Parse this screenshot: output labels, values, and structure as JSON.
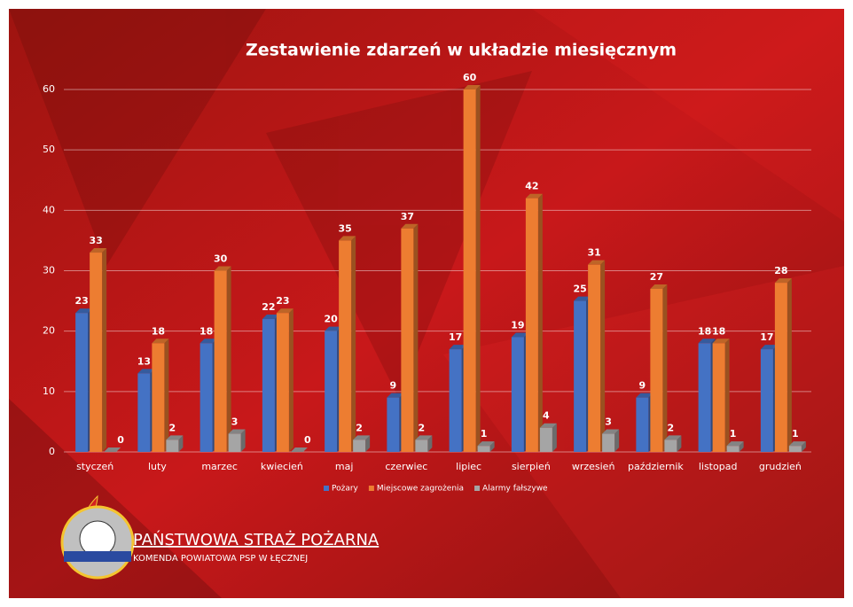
{
  "chart_data": {
    "type": "bar",
    "title": "Zestawienie zdarzeń w układzie miesięcznym",
    "categories": [
      "styczeń",
      "luty",
      "marzec",
      "kwiecień",
      "maj",
      "czerwiec",
      "lipiec",
      "sierpień",
      "wrzesień",
      "październik",
      "listopad",
      "grudzień"
    ],
    "series": [
      {
        "name": "Pożary",
        "color": "#4472c4",
        "values": [
          23,
          13,
          18,
          22,
          20,
          9,
          17,
          19,
          25,
          9,
          18,
          17
        ]
      },
      {
        "name": "Miejscowe zagrożenia",
        "color": "#ed7d31",
        "values": [
          33,
          18,
          30,
          23,
          35,
          37,
          60,
          42,
          31,
          27,
          18,
          28
        ]
      },
      {
        "name": "Alarmy fałszywe",
        "color": "#a5a5a5",
        "values": [
          0,
          2,
          3,
          0,
          2,
          2,
          1,
          4,
          3,
          2,
          1,
          1
        ]
      }
    ],
    "ylim": [
      0,
      60
    ],
    "yticks": [
      0,
      10,
      20,
      30,
      40,
      50,
      60
    ],
    "grid": true,
    "legend": "bottom"
  },
  "footer": {
    "title": "PAŃSTWOWA STRAŻ POŻARNA",
    "subtitle": "KOMENDA POWIATOWA PSP W ŁĘCZNEJ"
  }
}
